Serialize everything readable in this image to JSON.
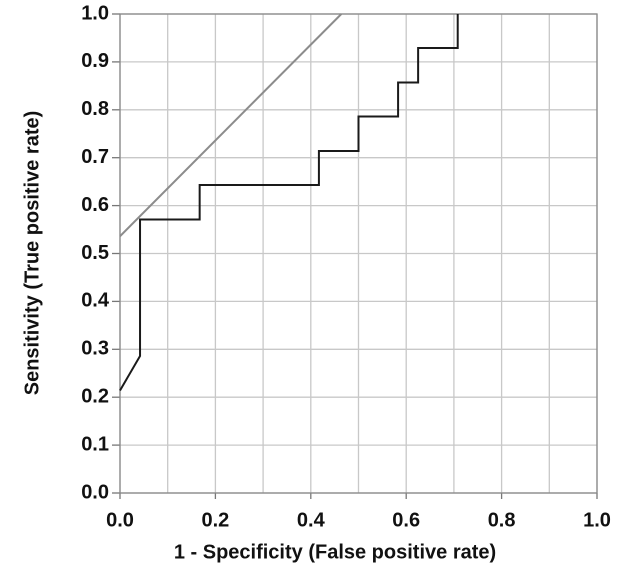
{
  "chart_data": {
    "type": "line",
    "xlabel": "1 - Specificity (False positive rate)",
    "ylabel": "Sensitivity (True positive rate)",
    "xlim": [
      0,
      1
    ],
    "ylim": [
      0,
      1
    ],
    "xticks": [
      {
        "value": 0,
        "label": "0.0"
      },
      {
        "value": 0.2,
        "label": "0.2"
      },
      {
        "value": 0.4,
        "label": "0.4"
      },
      {
        "value": 0.6,
        "label": "0.6"
      },
      {
        "value": 0.8,
        "label": "0.8"
      },
      {
        "value": 1,
        "label": "1.0"
      }
    ],
    "yticks": [
      {
        "value": 0,
        "label": "0.0"
      },
      0.1,
      0.2,
      0.3,
      0.4,
      0.5,
      0.6,
      0.7,
      0.8,
      0.9,
      {
        "value": 1,
        "label": "1.0"
      }
    ],
    "xgrid": [
      0,
      0.1,
      0.2,
      0.3,
      0.4,
      0.5,
      0.6,
      0.7,
      0.8,
      0.9,
      1
    ],
    "grid": true,
    "series": [
      {
        "color": "#1a1a1a",
        "x": [
          0,
          0.042,
          0.042,
          0.167,
          0.167,
          0.417,
          0.417,
          0.5,
          0.5,
          0.583,
          0.583,
          0.625,
          0.625,
          0.708,
          0.708
        ],
        "values": [
          0.214,
          0.286,
          0.571,
          0.571,
          0.643,
          0.643,
          0.714,
          0.714,
          0.786,
          0.786,
          0.857,
          0.857,
          0.929,
          0.929,
          1.0
        ]
      },
      {
        "color": "#8c8c8c",
        "x": [
          0,
          0.464
        ],
        "values": [
          0.536,
          1.0
        ]
      }
    ]
  }
}
